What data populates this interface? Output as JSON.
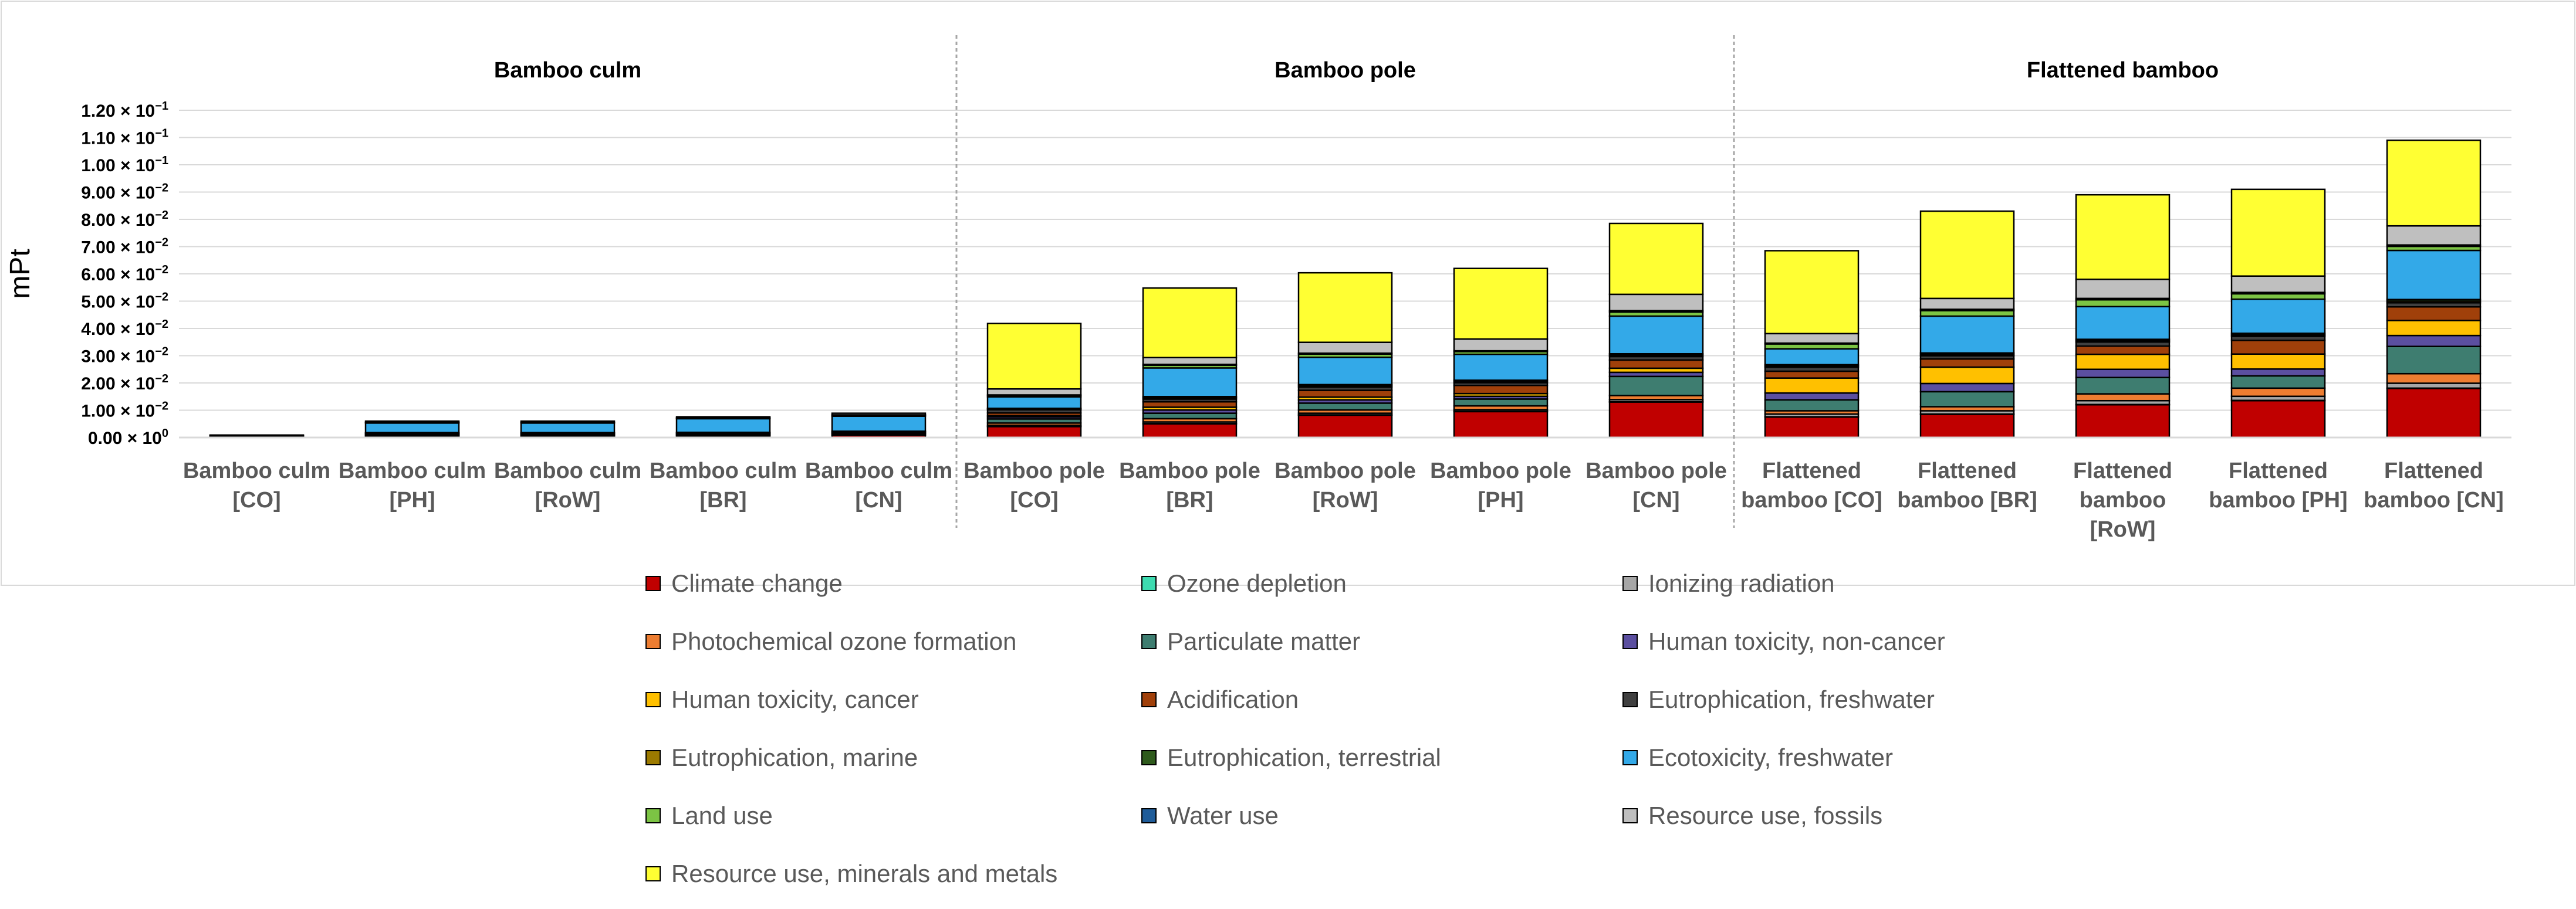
{
  "chart_data": {
    "type": "bar",
    "stacked": true,
    "title": "",
    "xlabel": "",
    "ylabel": "mPt",
    "ylim": [
      0,
      0.12
    ],
    "yticks": [
      {
        "value": 0.0,
        "label": "0.00 × 10",
        "exp": "0"
      },
      {
        "value": 0.01,
        "label": "1.00 × 10",
        "exp": "−2"
      },
      {
        "value": 0.02,
        "label": "2.00 × 10",
        "exp": "−2"
      },
      {
        "value": 0.03,
        "label": "3.00 × 10",
        "exp": "−2"
      },
      {
        "value": 0.04,
        "label": "4.00 × 10",
        "exp": "−2"
      },
      {
        "value": 0.05,
        "label": "5.00 × 10",
        "exp": "−2"
      },
      {
        "value": 0.06,
        "label": "6.00 × 10",
        "exp": "−2"
      },
      {
        "value": 0.07,
        "label": "7.00 × 10",
        "exp": "−2"
      },
      {
        "value": 0.08,
        "label": "8.00 × 10",
        "exp": "−2"
      },
      {
        "value": 0.09,
        "label": "9.00 × 10",
        "exp": "−2"
      },
      {
        "value": 0.1,
        "label": "1.00 × 10",
        "exp": "−1"
      },
      {
        "value": 0.11,
        "label": "1.10 × 10",
        "exp": "−1"
      },
      {
        "value": 0.12,
        "label": "1.20 × 10",
        "exp": "−1"
      }
    ],
    "groups": [
      {
        "name": "Bamboo culm",
        "start": 0,
        "end": 4
      },
      {
        "name": "Bamboo pole",
        "start": 5,
        "end": 9
      },
      {
        "name": "Flattened bamboo",
        "start": 10,
        "end": 14
      }
    ],
    "categories": [
      [
        "Bamboo culm",
        "[CO]"
      ],
      [
        "Bamboo culm",
        "[PH]"
      ],
      [
        "Bamboo culm",
        "[RoW]"
      ],
      [
        "Bamboo culm",
        "[BR]"
      ],
      [
        "Bamboo culm",
        "[CN]"
      ],
      [
        "Bamboo pole",
        "[CO]"
      ],
      [
        "Bamboo pole",
        "[BR]"
      ],
      [
        "Bamboo pole",
        "[RoW]"
      ],
      [
        "Bamboo pole",
        "[PH]"
      ],
      [
        "Bamboo pole",
        "[CN]"
      ],
      [
        "Flattened",
        "bamboo [CO]"
      ],
      [
        "Flattened",
        "bamboo [BR]"
      ],
      [
        "Flattened",
        "bamboo",
        "[RoW]"
      ],
      [
        "Flattened",
        "bamboo [PH]"
      ],
      [
        "Flattened",
        "bamboo [CN]"
      ]
    ],
    "series": [
      {
        "name": "Climate change",
        "color": "#C00000",
        "values": [
          0.0003,
          0.0005,
          0.0005,
          0.0006,
          0.0008,
          0.004,
          0.005,
          0.0082,
          0.0095,
          0.013,
          0.0075,
          0.0085,
          0.012,
          0.0135,
          0.018
        ]
      },
      {
        "name": "Ozone depletion",
        "color": "#3DDBB0",
        "values": [
          0,
          0,
          0,
          0,
          0,
          0.0001,
          0.0001,
          0.0001,
          0.0001,
          0.0001,
          0.0001,
          0.0001,
          0.0001,
          0.0001,
          0.0001
        ]
      },
      {
        "name": "Ionizing radiation",
        "color": "#A6A6A6",
        "values": [
          0,
          0,
          0,
          0,
          0,
          0.0004,
          0.0006,
          0.0006,
          0.0006,
          0.0008,
          0.001,
          0.0012,
          0.0014,
          0.0015,
          0.0018
        ]
      },
      {
        "name": "Photochemical ozone formation",
        "color": "#ED7D31",
        "values": [
          0.0001,
          0.0001,
          0.0001,
          0.0001,
          0.0001,
          0.0008,
          0.0012,
          0.0012,
          0.0014,
          0.0015,
          0.0012,
          0.0015,
          0.0025,
          0.003,
          0.0035
        ]
      },
      {
        "name": "Particulate matter",
        "color": "#3E7D70",
        "values": [
          0.0002,
          0.0003,
          0.0003,
          0.0003,
          0.0004,
          0.0015,
          0.002,
          0.0025,
          0.0025,
          0.007,
          0.004,
          0.0055,
          0.006,
          0.0045,
          0.01
        ]
      },
      {
        "name": "Human toxicity, non-cancer",
        "color": "#5B4FA0",
        "values": [
          0,
          0.0002,
          0.0002,
          0.0002,
          0.0002,
          0.0007,
          0.0012,
          0.0012,
          0.001,
          0.0015,
          0.0025,
          0.003,
          0.003,
          0.0025,
          0.004
        ]
      },
      {
        "name": "Human toxicity, cancer",
        "color": "#FFC000",
        "values": [
          0,
          0.0001,
          0.0001,
          0.0001,
          0.0001,
          0.0005,
          0.001,
          0.001,
          0.001,
          0.0015,
          0.0055,
          0.006,
          0.0055,
          0.0055,
          0.0055
        ]
      },
      {
        "name": "Acidification",
        "color": "#A0400A",
        "values": [
          0.0001,
          0.0002,
          0.0002,
          0.0002,
          0.0002,
          0.001,
          0.002,
          0.0025,
          0.003,
          0.003,
          0.0025,
          0.003,
          0.003,
          0.005,
          0.005
        ]
      },
      {
        "name": "Eutrophication, freshwater",
        "color": "#404040",
        "values": [
          0,
          0.0002,
          0.0002,
          0.0002,
          0.0003,
          0.0012,
          0.001,
          0.0012,
          0.001,
          0.0013,
          0.0015,
          0.0012,
          0.0015,
          0.0015,
          0.0015
        ]
      },
      {
        "name": "Eutrophication, marine",
        "color": "#9C7A00",
        "values": [
          0.0001,
          0.0001,
          0.0001,
          0.0001,
          0.0001,
          0.0003,
          0.0005,
          0.0005,
          0.0005,
          0.0005,
          0.0005,
          0.0005,
          0.0005,
          0.0005,
          0.0006
        ]
      },
      {
        "name": "Eutrophication, terrestrial",
        "color": "#2E5A1C",
        "values": [
          0.0001,
          0.0001,
          0.0001,
          0.0001,
          0.0001,
          0.0002,
          0.0004,
          0.0004,
          0.0004,
          0.0005,
          0.0004,
          0.0005,
          0.0005,
          0.0006,
          0.0006
        ]
      },
      {
        "name": "Ecotoxicity, freshwater",
        "color": "#33A9E8",
        "values": [
          0,
          0.0035,
          0.0035,
          0.005,
          0.0055,
          0.0042,
          0.0105,
          0.01,
          0.0095,
          0.0138,
          0.0058,
          0.0135,
          0.012,
          0.0125,
          0.018
        ]
      },
      {
        "name": "Land use",
        "color": "#7CC444",
        "values": [
          0,
          0.0002,
          0.0002,
          0.0002,
          0.0004,
          0.0005,
          0.001,
          0.0012,
          0.001,
          0.0015,
          0.0018,
          0.002,
          0.0025,
          0.002,
          0.0015
        ]
      },
      {
        "name": "Water use",
        "color": "#1F5C99",
        "values": [
          0,
          0.0001,
          0.0001,
          0.0001,
          0.0001,
          0.0002,
          0.0003,
          0.0003,
          0.0003,
          0.0005,
          0.0003,
          0.0005,
          0.0005,
          0.0005,
          0.0005
        ]
      },
      {
        "name": "Resource use, fossils",
        "color": "#BFBFBF",
        "values": [
          0,
          0.0004,
          0.0004,
          0.0004,
          0.0006,
          0.0022,
          0.0025,
          0.004,
          0.0043,
          0.006,
          0.0035,
          0.004,
          0.007,
          0.006,
          0.007
        ]
      },
      {
        "name": "Resource use, minerals and metals",
        "color": "#FFFF33",
        "values": [
          0,
          0,
          0,
          0,
          0,
          0.024,
          0.0255,
          0.0255,
          0.0259,
          0.026,
          0.0304,
          0.032,
          0.031,
          0.0318,
          0.0314
        ]
      }
    ]
  }
}
